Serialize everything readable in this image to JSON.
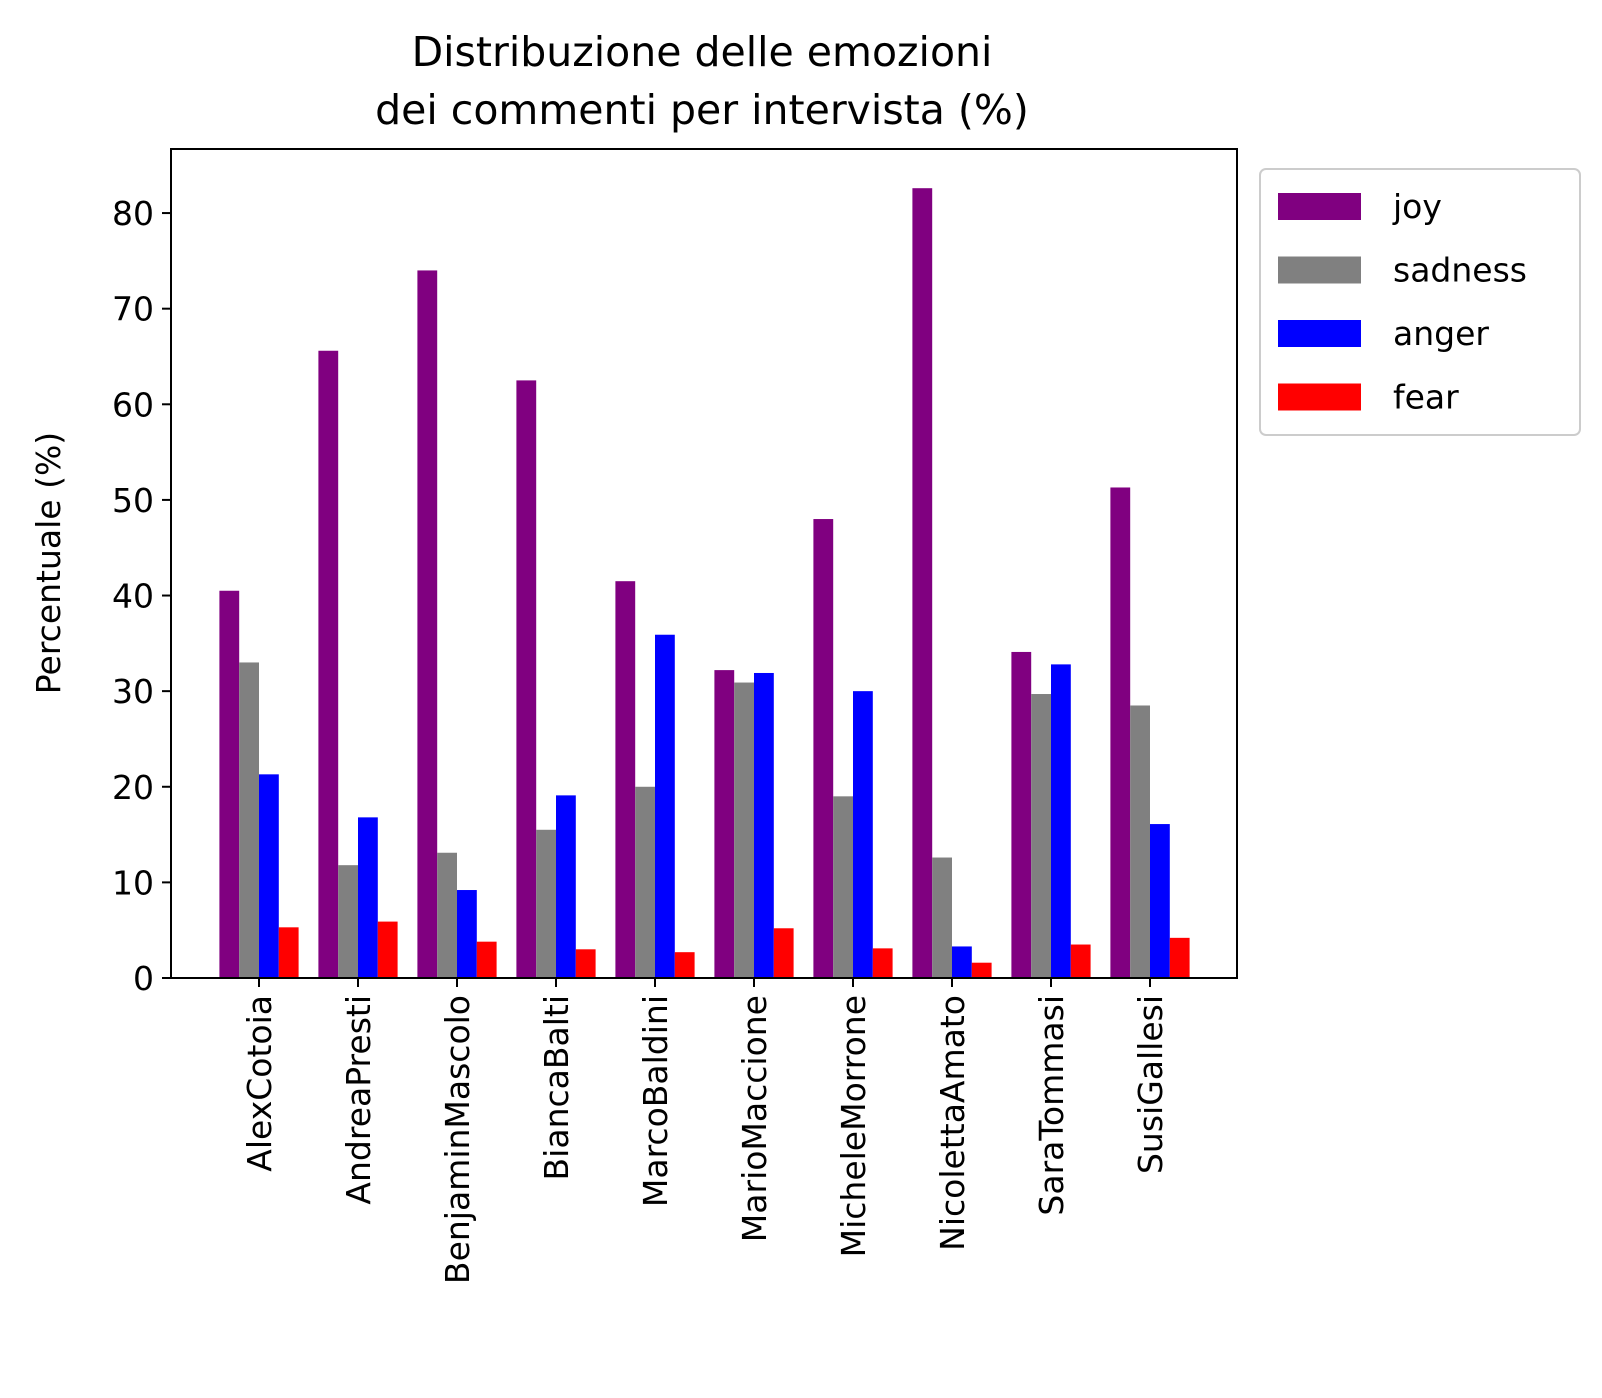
{
  "chart_data": {
    "type": "bar",
    "title_lines": [
      "Distribuzione delle emozioni",
      "dei commenti per intervista (%)"
    ],
    "xlabel": "",
    "ylabel": "Percentuale (%)",
    "ylim": [
      0,
      86.7
    ],
    "yticks": [
      0,
      10,
      20,
      30,
      40,
      50,
      60,
      70,
      80
    ],
    "grid": false,
    "legend_position": "outside-top-right",
    "categories": [
      "AlexCotoia",
      "AndreaPresti",
      "BenjaminMascolo",
      "BiancaBalti",
      "MarcoBaldini",
      "MarioMaccione",
      "MicheleMorrone",
      "NicolettaAmato",
      "SaraTommasi",
      "SusiGallesi"
    ],
    "series": [
      {
        "name": "joy",
        "color": "#800080",
        "values": [
          40.5,
          65.6,
          74.0,
          62.5,
          41.5,
          32.2,
          48.0,
          82.6,
          34.1,
          51.3
        ]
      },
      {
        "name": "sadness",
        "color": "#808080",
        "values": [
          33.0,
          11.8,
          13.1,
          15.5,
          20.0,
          30.9,
          19.0,
          12.6,
          29.7,
          28.5
        ]
      },
      {
        "name": "anger",
        "color": "#0000ff",
        "values": [
          21.3,
          16.8,
          9.2,
          19.1,
          35.9,
          31.9,
          30.0,
          3.3,
          32.8,
          16.1
        ]
      },
      {
        "name": "fear",
        "color": "#ff0000",
        "values": [
          5.3,
          5.9,
          3.8,
          3.0,
          2.7,
          5.2,
          3.1,
          1.6,
          3.5,
          4.2
        ]
      }
    ]
  }
}
